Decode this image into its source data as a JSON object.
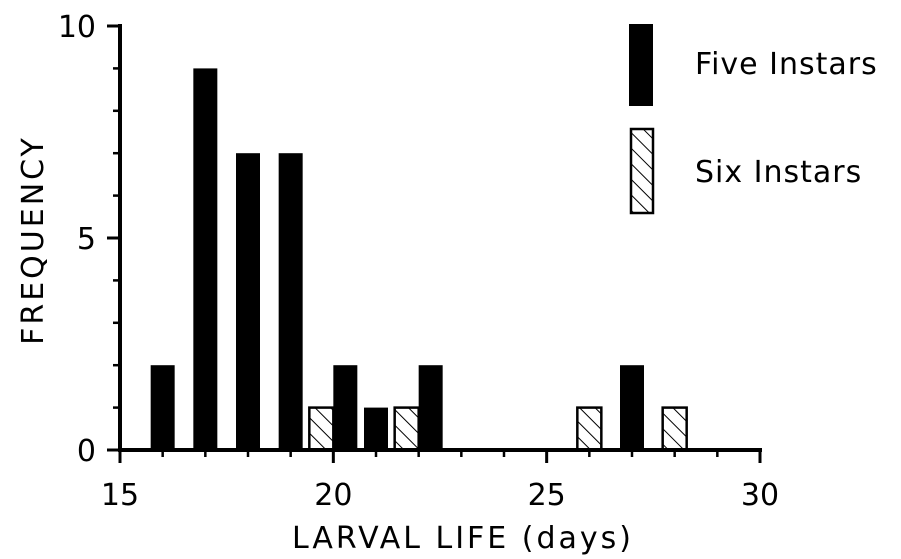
{
  "chart_data": {
    "type": "bar",
    "xlabel": "LARVAL LIFE (days)",
    "ylabel": "FREQUENCY",
    "xlim": [
      15,
      30
    ],
    "ylim": [
      0,
      10
    ],
    "x_ticks": [
      "15",
      "20",
      "25",
      "30"
    ],
    "y_ticks": [
      "0",
      "5",
      "10"
    ],
    "x_tick_values": [
      15,
      20,
      25,
      30
    ],
    "y_tick_values": [
      0,
      5,
      10
    ],
    "legend_position": "top-right",
    "series": [
      {
        "name": "Five Instars",
        "fill": "solid",
        "color": "#000000",
        "x": [
          16,
          17,
          18,
          19,
          20,
          21,
          22,
          27
        ],
        "values": [
          2,
          9,
          7,
          7,
          2,
          1,
          2,
          2
        ]
      },
      {
        "name": "Six Instars",
        "fill": "hatched",
        "color": "#000000",
        "x": [
          20,
          22,
          26,
          28
        ],
        "values": [
          1,
          1,
          1,
          1
        ]
      }
    ]
  }
}
